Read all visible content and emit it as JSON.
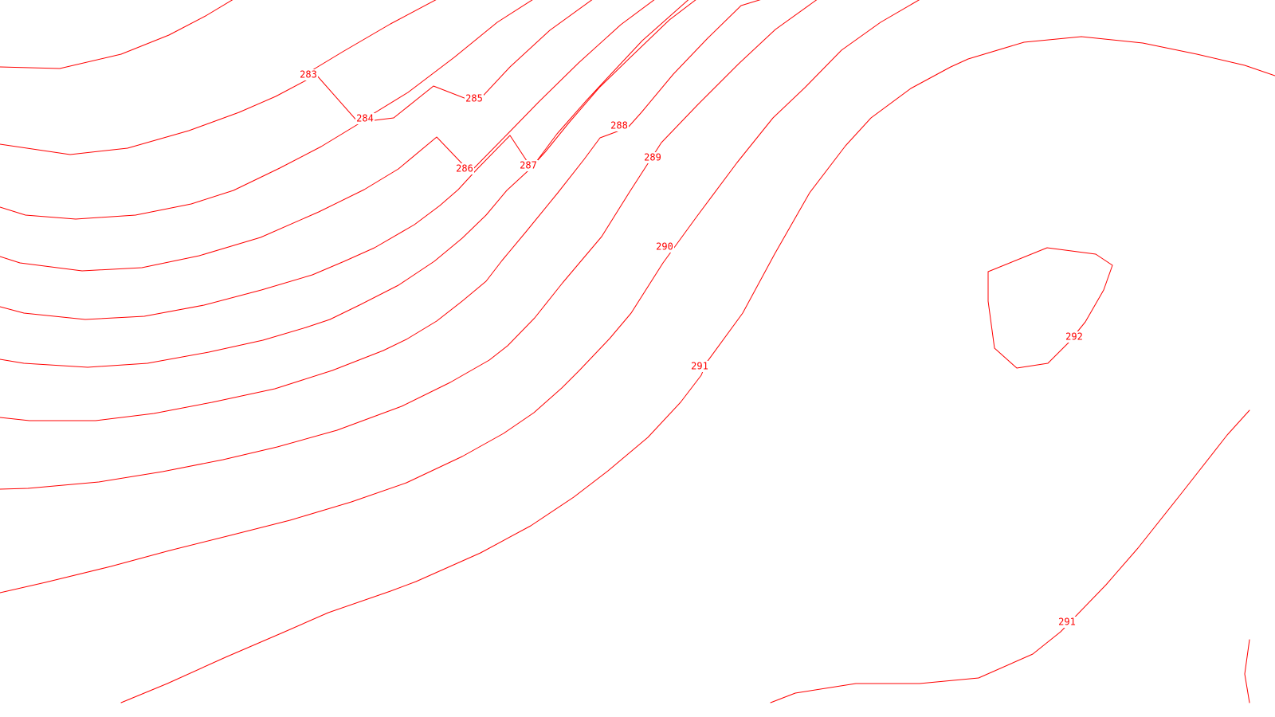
{
  "map": {
    "line_color": "#ff0000",
    "background_color": "#ffffff",
    "contour_labels": [
      {
        "id": "label-283",
        "value": "283"
      },
      {
        "id": "label-284",
        "value": "284"
      },
      {
        "id": "label-285",
        "value": "285"
      },
      {
        "id": "label-286",
        "value": "286"
      },
      {
        "id": "label-287",
        "value": "287"
      },
      {
        "id": "label-288",
        "value": "288"
      },
      {
        "id": "label-289",
        "value": "289"
      },
      {
        "id": "label-290",
        "value": "290"
      },
      {
        "id": "label-291-upper",
        "value": "291"
      },
      {
        "id": "label-292",
        "value": "292"
      },
      {
        "id": "label-291-lower",
        "value": "291"
      }
    ]
  }
}
